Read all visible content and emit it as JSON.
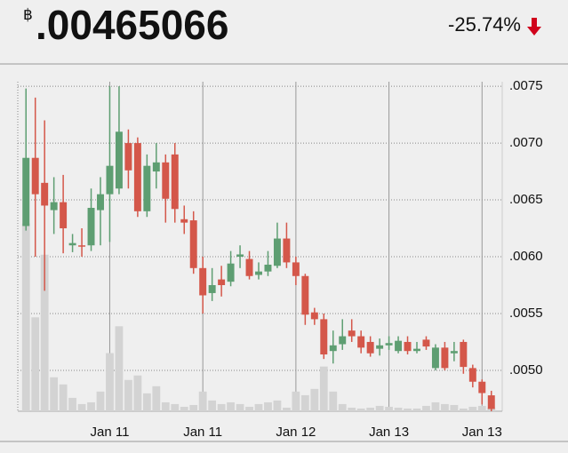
{
  "header": {
    "currency": "฿",
    "price": ".00465066",
    "change": "-25.74%"
  },
  "chart_data": {
    "type": "candlestick",
    "categories": [
      null,
      null,
      null,
      null,
      null,
      null,
      null,
      null,
      null,
      "Jan 11",
      null,
      null,
      null,
      null,
      null,
      null,
      null,
      null,
      null,
      "Jan 11",
      null,
      null,
      null,
      null,
      null,
      null,
      null,
      null,
      null,
      "Jan 12",
      null,
      null,
      null,
      null,
      null,
      null,
      null,
      null,
      null,
      "Jan 13",
      null,
      null,
      null,
      null,
      null,
      null,
      null,
      null,
      null,
      "Jan 13",
      null
    ],
    "open": [
      0.00627,
      0.00687,
      0.00665,
      0.00641,
      0.00648,
      0.0061,
      0.0061,
      0.0061,
      0.00641,
      0.00655,
      0.0066,
      0.007,
      0.007,
      0.0064,
      0.00675,
      0.00683,
      0.0069,
      0.00633,
      0.00632,
      0.0059,
      0.00568,
      0.0058,
      0.00578,
      0.006,
      0.00598,
      0.00584,
      0.00587,
      0.00592,
      0.00616,
      0.00595,
      0.00583,
      0.00551,
      0.00545,
      0.00517,
      0.00523,
      0.00535,
      0.0053,
      0.00525,
      0.00519,
      0.00522,
      0.00517,
      0.00525,
      0.00517,
      0.00527,
      0.00502,
      0.0052,
      0.00515,
      0.00525,
      0.00502,
      0.0049,
      0.00478
    ],
    "high": [
      0.00748,
      0.0074,
      0.0072,
      0.0067,
      0.00672,
      0.0062,
      0.00625,
      0.0066,
      0.0067,
      0.0075,
      0.0075,
      0.00712,
      0.00705,
      0.0069,
      0.007,
      0.0069,
      0.007,
      0.00645,
      0.0064,
      0.006,
      0.0059,
      0.00592,
      0.00605,
      0.0061,
      0.00605,
      0.00595,
      0.00605,
      0.0063,
      0.0063,
      0.006,
      0.00585,
      0.00555,
      0.0055,
      0.00535,
      0.00545,
      0.00545,
      0.00535,
      0.0053,
      0.00528,
      0.0053,
      0.0053,
      0.0053,
      0.00525,
      0.0053,
      0.00523,
      0.00525,
      0.00525,
      0.00527,
      0.00505,
      0.00492,
      0.00482
    ],
    "low": [
      0.00623,
      0.006,
      0.0057,
      0.0062,
      0.00603,
      0.00604,
      0.006,
      0.00605,
      0.0061,
      0.00613,
      0.00655,
      0.0066,
      0.00635,
      0.00635,
      0.0066,
      0.0063,
      0.0063,
      0.0062,
      0.00585,
      0.0055,
      0.00561,
      0.00565,
      0.00574,
      0.0059,
      0.0058,
      0.0058,
      0.00583,
      0.0059,
      0.0059,
      0.00575,
      0.0054,
      0.0054,
      0.0051,
      0.00506,
      0.00518,
      0.00525,
      0.00515,
      0.00512,
      0.00513,
      0.00518,
      0.00515,
      0.00514,
      0.00515,
      0.00518,
      0.005,
      0.005,
      0.00508,
      0.00497,
      0.00485,
      0.0047,
      0.00464
    ],
    "close": [
      0.00687,
      0.00655,
      0.00645,
      0.00648,
      0.00625,
      0.00612,
      0.00609,
      0.00643,
      0.00655,
      0.0068,
      0.0071,
      0.00676,
      0.0064,
      0.0068,
      0.00683,
      0.00651,
      0.00642,
      0.0063,
      0.0059,
      0.00566,
      0.00575,
      0.00575,
      0.00594,
      0.00602,
      0.00583,
      0.00587,
      0.00593,
      0.00616,
      0.00595,
      0.00583,
      0.00549,
      0.00545,
      0.00514,
      0.00522,
      0.0053,
      0.0053,
      0.0052,
      0.00515,
      0.00522,
      0.00524,
      0.00526,
      0.00517,
      0.00519,
      0.00521,
      0.0052,
      0.00502,
      0.00517,
      0.00503,
      0.0049,
      0.0048,
      0.00466
    ],
    "volume": [
      210,
      105,
      175,
      38,
      30,
      15,
      8,
      10,
      22,
      65,
      95,
      35,
      40,
      20,
      28,
      10,
      8,
      5,
      7,
      22,
      12,
      8,
      10,
      8,
      5,
      8,
      10,
      12,
      4,
      22,
      18,
      25,
      50,
      22,
      8,
      4,
      3,
      4,
      6,
      5,
      4,
      3,
      3,
      6,
      10,
      8,
      7,
      3,
      5,
      6,
      4
    ],
    "up_color": "#5e9e72",
    "down_color": "#d4574a",
    "volume_color": "#d3d3d3",
    "ylim": [
      0.00464,
      0.00754
    ],
    "yticks": [
      {
        "value": 0.005,
        "label": ".0050"
      },
      {
        "value": 0.0055,
        "label": ".0055"
      },
      {
        "value": 0.006,
        "label": ".0060"
      },
      {
        "value": 0.0065,
        "label": ".0065"
      },
      {
        "value": 0.007,
        "label": ".0070"
      },
      {
        "value": 0.0075,
        "label": ".0075"
      }
    ],
    "grid": true
  }
}
